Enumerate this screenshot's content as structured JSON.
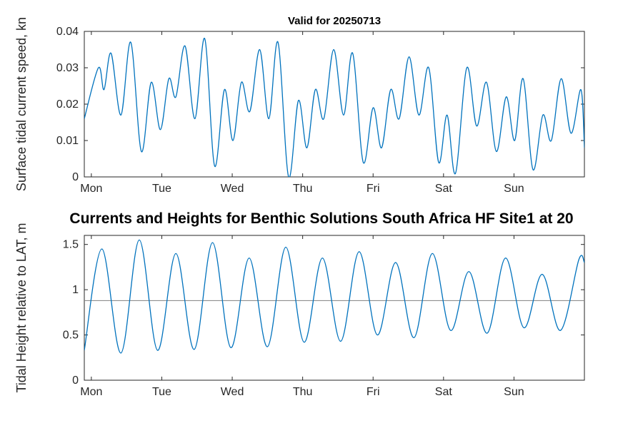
{
  "figure": {
    "main_title": "Currents and Heights for Benthic Solutions South Africa HF Site1 at 20",
    "background": "#ffffff",
    "line_color": "#0072BD",
    "axis_color": "#262626",
    "tick_label_color": "#262626",
    "ref_line_color": "#808080"
  },
  "chart_data": [
    {
      "type": "line",
      "title": "Valid for 20250713",
      "xlabel": "",
      "ylabel": "Surface tidal current speed, kn",
      "xlim": [
        -0.1,
        7
      ],
      "ylim": [
        0,
        0.04
      ],
      "xticks": [
        0,
        1,
        2,
        3,
        4,
        5,
        6
      ],
      "xtick_labels": [
        "Mon",
        "Tue",
        "Wed",
        "Thu",
        "Fri",
        "Sat",
        "Sun"
      ],
      "yticks": [
        0,
        0.01,
        0.02,
        0.03,
        0.04
      ],
      "ytick_labels": [
        "0",
        "0.01",
        "0.02",
        "0.03",
        "0.04"
      ],
      "grid": false,
      "x": [
        -0.1,
        0.1,
        0.18,
        0.28,
        0.42,
        0.56,
        0.71,
        0.85,
        0.98,
        1.1,
        1.2,
        1.33,
        1.47,
        1.61,
        1.75,
        1.89,
        2.01,
        2.13,
        2.25,
        2.39,
        2.52,
        2.65,
        2.8,
        2.94,
        3.06,
        3.18,
        3.3,
        3.44,
        3.58,
        3.71,
        3.86,
        4.0,
        4.12,
        4.25,
        4.37,
        4.51,
        4.65,
        4.79,
        4.93,
        5.05,
        5.17,
        5.33,
        5.47,
        5.61,
        5.75,
        5.89,
        6.01,
        6.13,
        6.27,
        6.41,
        6.53,
        6.67,
        6.81,
        6.95,
        7.0
      ],
      "y": [
        0.016,
        0.03,
        0.024,
        0.034,
        0.017,
        0.037,
        0.007,
        0.026,
        0.013,
        0.027,
        0.022,
        0.036,
        0.016,
        0.038,
        0.003,
        0.024,
        0.01,
        0.026,
        0.018,
        0.035,
        0.016,
        0.037,
        0.0,
        0.021,
        0.008,
        0.024,
        0.016,
        0.035,
        0.017,
        0.034,
        0.004,
        0.019,
        0.008,
        0.024,
        0.016,
        0.033,
        0.017,
        0.03,
        0.004,
        0.017,
        0.001,
        0.03,
        0.014,
        0.026,
        0.007,
        0.022,
        0.01,
        0.027,
        0.002,
        0.017,
        0.01,
        0.027,
        0.012,
        0.024,
        0.008
      ]
    },
    {
      "type": "line",
      "title": "",
      "xlabel": "",
      "ylabel": "Tidal Height relative to LAT, m",
      "xlim": [
        -0.1,
        7
      ],
      "ylim": [
        0,
        1.6
      ],
      "xticks": [
        0,
        1,
        2,
        3,
        4,
        5,
        6
      ],
      "xtick_labels": [
        "Mon",
        "Tue",
        "Wed",
        "Thu",
        "Fri",
        "Sat",
        "Sun"
      ],
      "yticks": [
        0,
        0.5,
        1,
        1.5
      ],
      "ytick_labels": [
        "0",
        "0.5",
        "1",
        "1.5"
      ],
      "grid": false,
      "ref_line_y": 0.88,
      "x": [
        -0.1,
        0.15,
        0.42,
        0.68,
        0.94,
        1.2,
        1.46,
        1.72,
        1.98,
        2.24,
        2.5,
        2.76,
        3.02,
        3.28,
        3.54,
        3.8,
        4.06,
        4.32,
        4.58,
        4.84,
        5.1,
        5.36,
        5.62,
        5.88,
        6.14,
        6.4,
        6.66,
        6.92,
        7.0
      ],
      "y": [
        0.33,
        1.45,
        0.3,
        1.55,
        0.33,
        1.4,
        0.34,
        1.52,
        0.36,
        1.35,
        0.37,
        1.47,
        0.42,
        1.35,
        0.43,
        1.42,
        0.5,
        1.3,
        0.47,
        1.4,
        0.55,
        1.2,
        0.52,
        1.35,
        0.58,
        1.17,
        0.55,
        1.33,
        1.3
      ]
    }
  ]
}
